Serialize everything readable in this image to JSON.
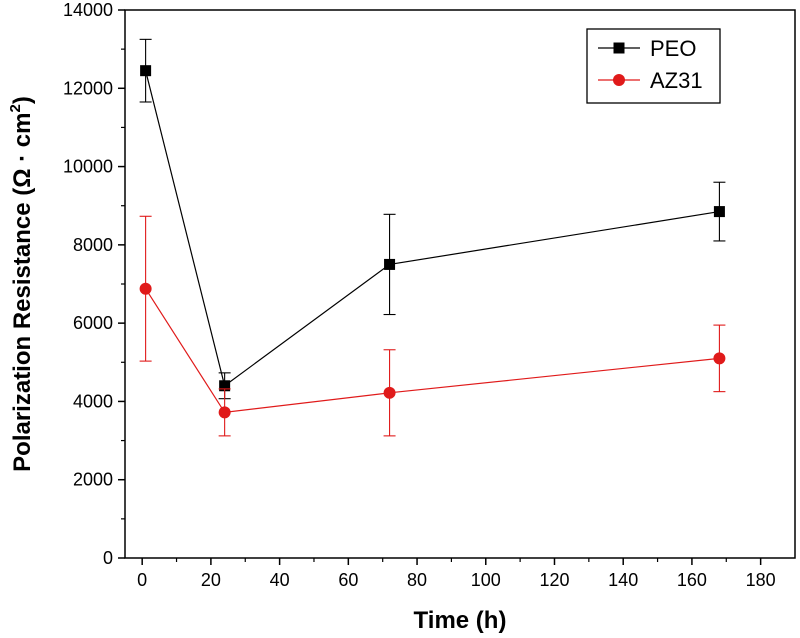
{
  "chart_data": {
    "type": "line",
    "title": "",
    "xlabel": "Time (h)",
    "ylabel": "Polarization Resistance (Ω · cm²)",
    "ylabel_main": "Polarization Resistance (Ω · cm",
    "ylabel_sup": "2",
    "ylabel_close": ")",
    "xlim": [
      -5,
      190
    ],
    "ylim": [
      0,
      14000
    ],
    "xticks": [
      0,
      20,
      40,
      60,
      80,
      100,
      120,
      140,
      160,
      180
    ],
    "yticks": [
      0,
      2000,
      4000,
      6000,
      8000,
      10000,
      12000,
      14000
    ],
    "grid": false,
    "legend": "top-right",
    "series": [
      {
        "name": "PEO",
        "color": "#000000",
        "marker": "square",
        "x": [
          1,
          24,
          72,
          168
        ],
        "y": [
          12450,
          4400,
          7500,
          8850
        ],
        "err": [
          800,
          330,
          1280,
          750
        ]
      },
      {
        "name": "AZ31",
        "color": "#e01a1a",
        "marker": "circle",
        "x": [
          1,
          24,
          72,
          168
        ],
        "y": [
          6880,
          3720,
          4220,
          5100
        ],
        "err": [
          1850,
          600,
          1100,
          850
        ]
      }
    ]
  }
}
